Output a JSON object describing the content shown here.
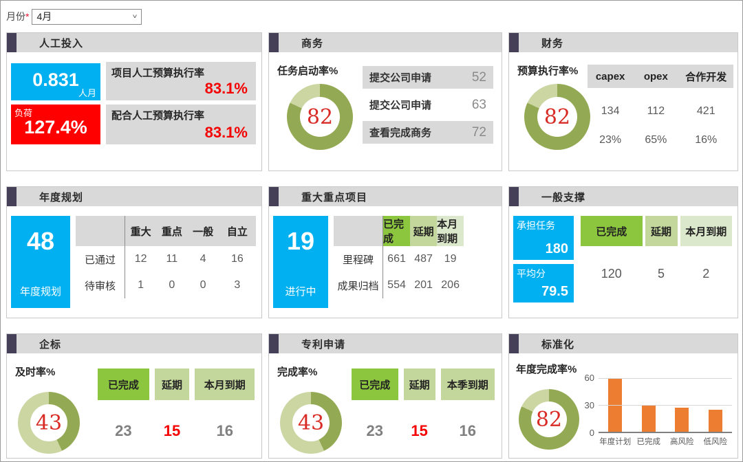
{
  "filter": {
    "label": "月份",
    "required_mark": "*",
    "value": "4月"
  },
  "colors": {
    "accent": "#454058",
    "blue": "#00b0f0",
    "red_box": "#fe0000",
    "red_text": "#f40000",
    "header_gray": "#d9d9d9",
    "green_bright": "#8cc63f",
    "green_light": "#c3d69b",
    "green_lighter": "#dce8cc",
    "donut_dark": "#94a953",
    "donut_light": "#cbd6a3",
    "bar_orange": "#ed7d31"
  },
  "cards": {
    "labor": {
      "title": "人工投入",
      "metric": {
        "value": "0.831",
        "unit": "人月"
      },
      "load": {
        "label": "负荷",
        "value": "127.4%"
      },
      "rates": [
        {
          "label": "项目人工预算执行率",
          "value": "83.1%"
        },
        {
          "label": "配合人工预算执行率",
          "value": "83.1%"
        }
      ]
    },
    "business": {
      "title": "商务",
      "gauge_label": "任务启动率%",
      "gauge_value": 82,
      "items": [
        {
          "label": "提交公司申请",
          "value": "52"
        },
        {
          "label": "提交公司申请",
          "value": "63"
        },
        {
          "label": "查看完成商务",
          "value": "72"
        }
      ]
    },
    "finance": {
      "title": "财务",
      "gauge_label": "预算执行率%",
      "gauge_value": 82,
      "table": {
        "headers": [
          "capex",
          "opex",
          "合作开发"
        ],
        "rows": [
          [
            "134",
            "112",
            "421"
          ],
          [
            "23%",
            "65%",
            "16%"
          ]
        ]
      }
    },
    "annual_plan": {
      "title": "年度规划",
      "stat": {
        "value": "48",
        "label": "年度规划"
      },
      "table": {
        "headers": [
          "重大",
          "重点",
          "一般",
          "自立"
        ],
        "rows": [
          {
            "label": "已通过",
            "values": [
              "12",
              "11",
              "4",
              "16"
            ]
          },
          {
            "label": "待审核",
            "values": [
              "1",
              "0",
              "0",
              "3"
            ]
          }
        ]
      }
    },
    "major_projects": {
      "title": "重大重点项目",
      "stat": {
        "value": "19",
        "label": "进行中"
      },
      "table": {
        "headers": [
          "已完成",
          "延期",
          "本月到期"
        ],
        "rows": [
          {
            "label": "里程碑",
            "values": [
              "661",
              "487",
              "19"
            ]
          },
          {
            "label": "成果归档",
            "values": [
              "554",
              "201",
              "206"
            ]
          }
        ]
      }
    },
    "general_support": {
      "title": "一般支撑",
      "stats": [
        {
          "label": "承担任务",
          "value": "180"
        },
        {
          "label": "平均分",
          "value": "79.5"
        }
      ],
      "headers": [
        "已完成",
        "延期",
        "本月到期"
      ],
      "values": [
        "120",
        "5",
        "2"
      ]
    },
    "enterprise_standard": {
      "title": "企标",
      "gauge_label": "及时率%",
      "gauge_value": 43,
      "headers": [
        "已完成",
        "延期",
        "本月到期"
      ],
      "values": [
        "23",
        "15",
        "16"
      ]
    },
    "patents": {
      "title": "专利申请",
      "gauge_label": "完成率%",
      "gauge_value": 43,
      "headers": [
        "已完成",
        "延期",
        "本季到期"
      ],
      "values": [
        "23",
        "15",
        "16"
      ]
    },
    "standardization": {
      "title": "标准化",
      "gauge_label": "年度完成率%",
      "gauge_value": 82
    }
  },
  "chart_data": {
    "type": "bar",
    "categories": [
      "年度计划",
      "已完成",
      "高风险",
      "低风险"
    ],
    "values": [
      60,
      29,
      27,
      25
    ],
    "title": "",
    "xlabel": "",
    "ylabel": "",
    "ylim": [
      0,
      60
    ],
    "yticks": [
      0,
      30,
      60
    ],
    "bar_color": "#ed7d31",
    "grid": true,
    "legend": false
  }
}
